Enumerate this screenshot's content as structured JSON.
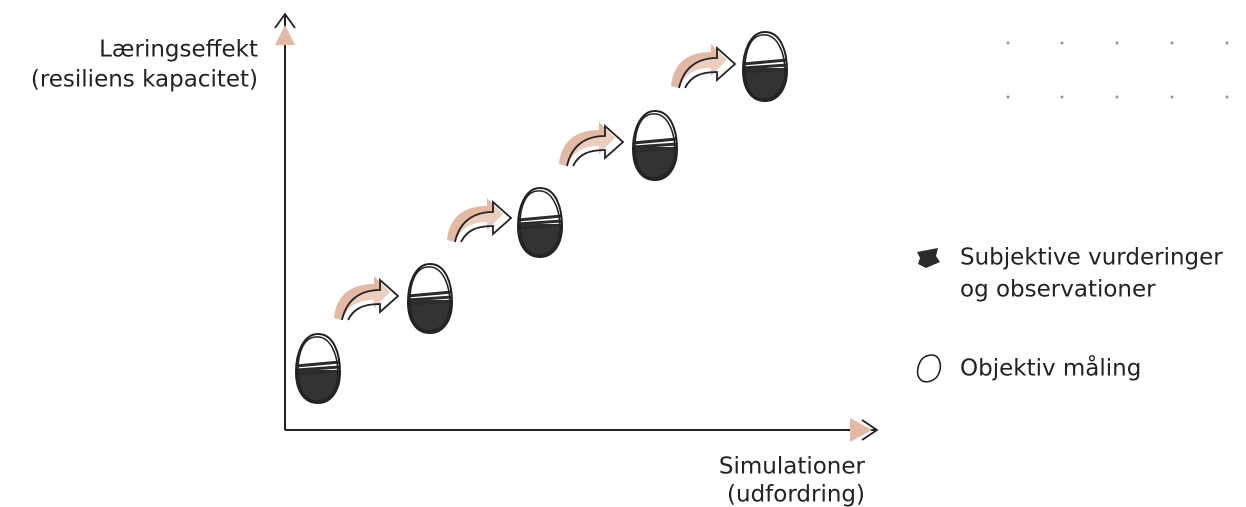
{
  "axes": {
    "y_label": [
      "Læringseffekt",
      "(resiliens kapacitet)"
    ],
    "x_label": [
      "Simulationer",
      "(udfordring)"
    ]
  },
  "legend": [
    {
      "label_lines": [
        "Subjektive vurderinger",
        "og observationer"
      ]
    },
    {
      "label": "Objektiv måling"
    }
  ]
}
